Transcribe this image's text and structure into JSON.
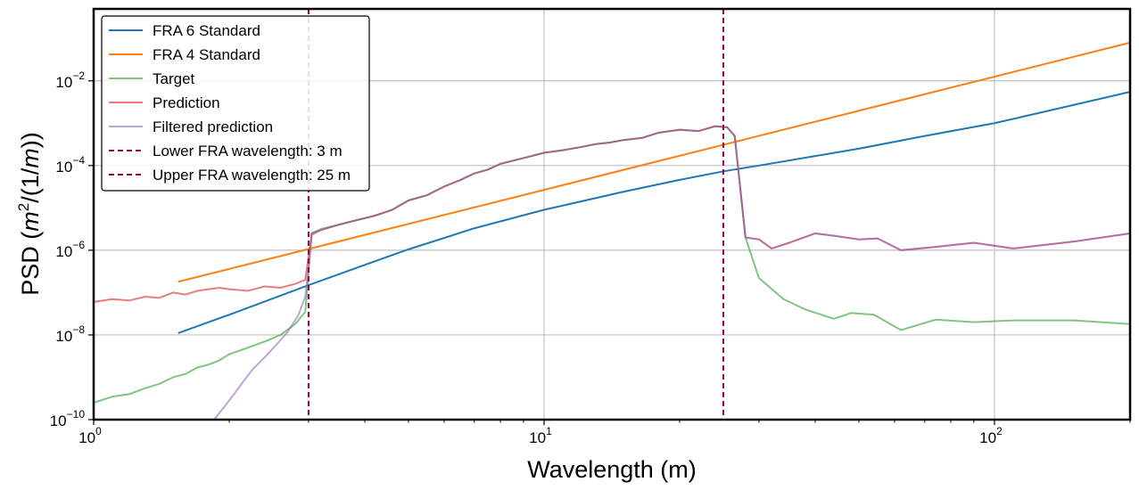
{
  "chart_data": {
    "type": "line",
    "xscale": "log",
    "yscale": "log",
    "xlim": [
      1,
      200
    ],
    "ylim": [
      1e-10,
      0.5
    ],
    "xlabel": "Wavelength (m)",
    "ylabel_prefix": "PSD (",
    "ylabel_m": "m",
    "ylabel_sup": "2",
    "ylabel_mid": "/(1/",
    "ylabel_m2": "m",
    "ylabel_end": "))",
    "grid": true,
    "legend_position": "upper-left",
    "x_ticks": [
      {
        "value": 1,
        "base": "10",
        "exp": "0"
      },
      {
        "value": 10,
        "base": "10",
        "exp": "1"
      },
      {
        "value": 100,
        "base": "10",
        "exp": "2"
      }
    ],
    "y_ticks": [
      {
        "value": 1e-10,
        "base": "10",
        "exp": "−10"
      },
      {
        "value": 1e-08,
        "base": "10",
        "exp": "−8"
      },
      {
        "value": 1e-06,
        "base": "10",
        "exp": "−6"
      },
      {
        "value": 0.0001,
        "base": "10",
        "exp": "−4"
      },
      {
        "value": 0.01,
        "base": "10",
        "exp": "−2"
      }
    ],
    "series": [
      {
        "name": "FRA 6 Standard",
        "color": "#1f77b4",
        "dash": "",
        "x": [
          1.54,
          2,
          3,
          4,
          5,
          7,
          10,
          15,
          20,
          25,
          30,
          50,
          70,
          100,
          150,
          200
        ],
        "y": [
          1.1e-08,
          3e-08,
          1.5e-07,
          4.5e-07,
          1.05e-06,
          3.3e-06,
          9e-06,
          2.4e-05,
          4.6e-05,
          7.3e-05,
          0.0001,
          0.00025,
          0.0005,
          0.001,
          0.0027,
          0.0055
        ]
      },
      {
        "name": "FRA 4 Standard",
        "color": "#ff7f0e",
        "dash": "",
        "x": [
          1.54,
          200
        ],
        "y": [
          1.8e-07,
          0.08
        ]
      },
      {
        "name": "Target",
        "color": "#2ca02c",
        "dash": "",
        "opacity": 0.6,
        "x": [
          1.0,
          1.1,
          1.2,
          1.3,
          1.4,
          1.5,
          1.6,
          1.7,
          1.8,
          1.9,
          2.0,
          2.2,
          2.4,
          2.6,
          2.8,
          2.95,
          3.05,
          3.2,
          3.5,
          3.8,
          4.2,
          4.6,
          5.0,
          5.5,
          6.0,
          6.5,
          7.0,
          7.5,
          8.0,
          9.0,
          10.0,
          11.0,
          12.0,
          13.0,
          14.0,
          15.0,
          16.5,
          18.0,
          20.0,
          22.0,
          24.0,
          25.5,
          26.5,
          28.0,
          30.0,
          34.0,
          38.0,
          44.0,
          48.0,
          54.0,
          62.0,
          74.0,
          90.0,
          110.0,
          150.0,
          200.0
        ],
        "y": [
          2.5e-10,
          3.5e-10,
          4e-10,
          5.5e-10,
          7e-10,
          1e-09,
          1.2e-09,
          1.7e-09,
          2e-09,
          2.5e-09,
          3.5e-09,
          5e-09,
          7e-09,
          1e-08,
          1.8e-08,
          3.5e-08,
          2.5e-06,
          3.2e-06,
          4e-06,
          5e-06,
          6.5e-06,
          9e-06,
          1.5e-05,
          2e-05,
          3.2e-05,
          4.5e-05,
          6.5e-05,
          8e-05,
          0.00011,
          0.00015,
          0.0002,
          0.00023,
          0.00027,
          0.00032,
          0.00035,
          0.0004,
          0.00045,
          0.0006,
          0.0007,
          0.00065,
          0.00085,
          0.0008,
          0.0005,
          2e-06,
          2.2e-07,
          7e-08,
          4e-08,
          2.4e-08,
          3.3e-08,
          3e-08,
          1.3e-08,
          2.3e-08,
          2e-08,
          2.2e-08,
          2.2e-08,
          1.8e-08
        ]
      },
      {
        "name": "Prediction",
        "color": "#d62728",
        "dash": "",
        "opacity": 0.6,
        "x": [
          1.0,
          1.1,
          1.2,
          1.3,
          1.4,
          1.5,
          1.6,
          1.7,
          1.8,
          1.9,
          2.0,
          2.2,
          2.4,
          2.6,
          2.8,
          2.95,
          3.05,
          3.2,
          3.5,
          3.8,
          4.2,
          4.6,
          5.0,
          5.5,
          6.0,
          6.5,
          7.0,
          7.5,
          8.0,
          9.0,
          10.0,
          11.0,
          12.0,
          13.0,
          14.0,
          15.0,
          16.5,
          18.0,
          20.0,
          22.0,
          24.0,
          25.5,
          26.5,
          28.0,
          30.0,
          32.0,
          35.0,
          40.0,
          44.0,
          50.0,
          55.0,
          62.0,
          74.0,
          90.0,
          110.0,
          150.0,
          200.0
        ],
        "y": [
          6e-08,
          7e-08,
          6.5e-08,
          8e-08,
          7.5e-08,
          1e-07,
          9e-08,
          1.1e-07,
          1.2e-07,
          1.3e-07,
          1.2e-07,
          1.1e-07,
          1.4e-07,
          1.3e-07,
          1.6e-07,
          2e-07,
          2.5e-06,
          3e-06,
          4e-06,
          5e-06,
          6.5e-06,
          9e-06,
          1.5e-05,
          2e-05,
          3.2e-05,
          4.5e-05,
          6.5e-05,
          8e-05,
          0.00011,
          0.00015,
          0.0002,
          0.00023,
          0.00027,
          0.00032,
          0.00035,
          0.0004,
          0.00045,
          0.0006,
          0.0007,
          0.00065,
          0.00085,
          0.0008,
          0.0005,
          2e-06,
          1.8e-06,
          1.1e-06,
          1.5e-06,
          2.5e-06,
          2.2e-06,
          1.8e-06,
          1.9e-06,
          1e-06,
          1.2e-06,
          1.5e-06,
          1.1e-06,
          1.6e-06,
          2.5e-06
        ]
      },
      {
        "name": "Filtered prediction",
        "color": "#9467bd",
        "dash": "",
        "opacity": 0.6,
        "x": [
          1.85,
          1.95,
          2.05,
          2.15,
          2.25,
          2.4,
          2.55,
          2.7,
          2.85,
          2.95,
          3.05,
          3.2,
          3.5,
          3.8,
          4.2,
          4.6,
          5.0,
          5.5,
          6.0,
          6.5,
          7.0,
          7.5,
          8.0,
          9.0,
          10.0,
          11.0,
          12.0,
          13.0,
          14.0,
          15.0,
          16.5,
          18.0,
          20.0,
          22.0,
          24.0,
          25.5,
          26.5,
          28.0,
          30.0,
          32.0,
          35.0,
          40.0,
          44.0,
          50.0,
          55.0,
          62.0,
          74.0,
          90.0,
          110.0,
          150.0,
          200.0
        ],
        "y": [
          1e-10,
          2e-10,
          4e-10,
          8e-10,
          1.5e-09,
          3e-09,
          6e-09,
          1.2e-08,
          3e-08,
          8e-08,
          2.3e-06,
          3e-06,
          4e-06,
          5e-06,
          6.5e-06,
          9e-06,
          1.5e-05,
          2e-05,
          3.2e-05,
          4.5e-05,
          6.5e-05,
          8e-05,
          0.00011,
          0.00015,
          0.0002,
          0.00023,
          0.00027,
          0.00032,
          0.00035,
          0.0004,
          0.00045,
          0.0006,
          0.0007,
          0.00065,
          0.00085,
          0.0008,
          0.0005,
          2e-06,
          1.8e-06,
          1.1e-06,
          1.5e-06,
          2.5e-06,
          2.2e-06,
          1.8e-06,
          1.9e-06,
          1e-06,
          1.2e-06,
          1.5e-06,
          1.1e-06,
          1.6e-06,
          2.5e-06
        ]
      },
      {
        "name": "Lower FRA wavelength: 3 m",
        "color": "#a1004a",
        "dash": "6,4",
        "vline": 3
      },
      {
        "name": "Upper FRA wavelength: 25 m",
        "color": "#a1004a",
        "dash": "6,4",
        "vline": 25
      }
    ]
  }
}
